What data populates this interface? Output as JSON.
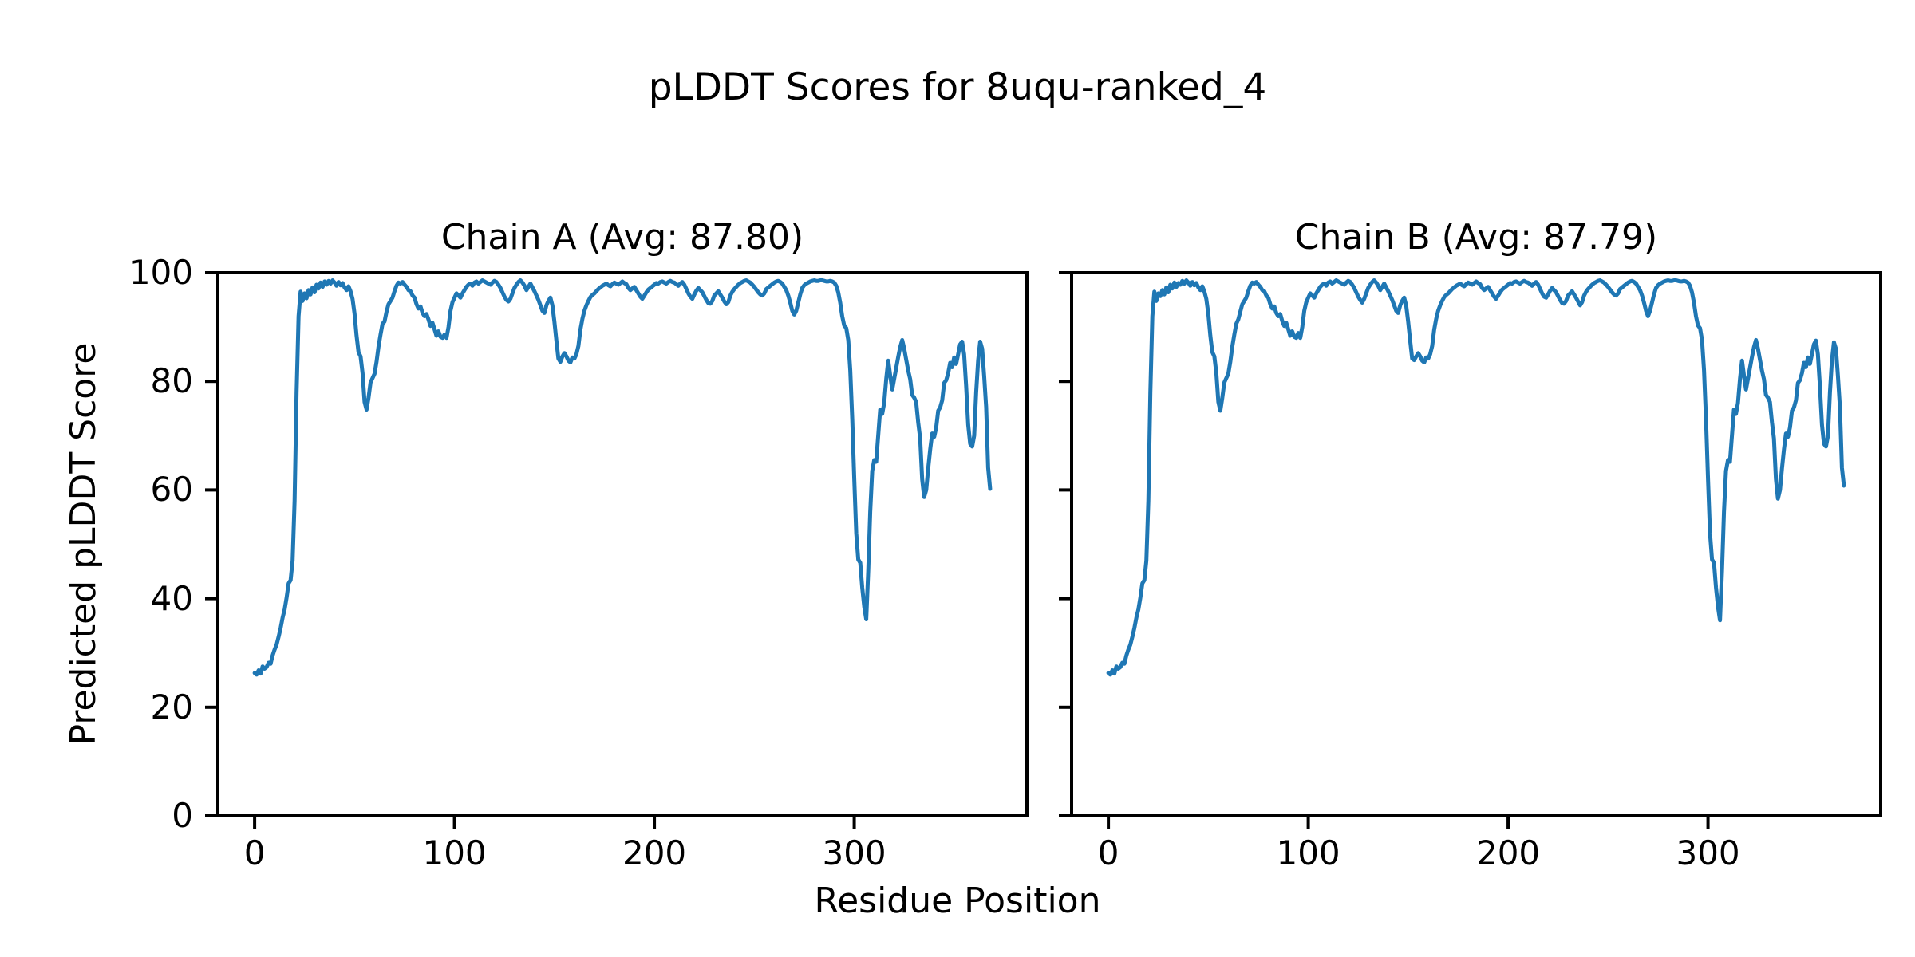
{
  "figure": {
    "title": "pLDDT Scores for 8uqu-ranked_4",
    "background_color": "#ffffff",
    "text_color": "#000000"
  },
  "chart_data": {
    "type": "line",
    "title": "pLDDT Scores for 8uqu-ranked_4",
    "xlabel": "Residue Position",
    "ylabel": "Predicted pLDDT Score",
    "line_color": "#1f77b4",
    "spine_color": "#000000",
    "grid": false,
    "legend": "none",
    "xlim": [
      -18.4,
      386.4
    ],
    "ylim": [
      0,
      100
    ],
    "xticks": [
      0,
      100,
      200,
      300
    ],
    "yticks": [
      0,
      20,
      40,
      60,
      80,
      100
    ],
    "subplots": [
      {
        "chain": "A",
        "avg": 87.8,
        "title": "Chain A (Avg: 87.80)",
        "x0": 0,
        "dx": 1,
        "y": [
          26.3,
          26.0,
          26.8,
          26.2,
          27.5,
          27.1,
          27.4,
          28.2,
          28.0,
          29.5,
          30.6,
          31.5,
          33.0,
          34.6,
          36.5,
          38.0,
          40.2,
          42.8,
          43.4,
          47.0,
          58.0,
          78.0,
          92.0,
          96.5,
          94.8,
          96.2,
          95.3,
          96.8,
          96.0,
          97.3,
          96.4,
          97.8,
          97.1,
          98.2,
          97.4,
          98.4,
          97.8,
          98.5,
          98.0,
          98.6,
          98.2,
          97.6,
          98.3,
          97.7,
          98.1,
          97.3,
          96.8,
          97.5,
          96.6,
          95.2,
          92.5,
          88.5,
          85.4,
          84.6,
          81.5,
          76.2,
          74.8,
          77.0,
          79.8,
          80.6,
          81.4,
          83.6,
          86.4,
          88.6,
          90.6,
          91.0,
          92.8,
          94.2,
          94.8,
          95.4,
          96.6,
          97.6,
          98.2,
          98.0,
          98.3,
          97.8,
          97.4,
          96.8,
          96.6,
          95.8,
          95.4,
          94.2,
          93.4,
          93.8,
          92.6,
          92.0,
          92.4,
          91.4,
          90.2,
          90.8,
          89.6,
          88.4,
          89.2,
          88.2,
          88.0,
          88.6,
          88.0,
          90.0,
          93.0,
          94.6,
          95.4,
          96.2,
          95.8,
          95.4,
          96.2,
          96.8,
          97.4,
          97.8,
          98.0,
          97.6,
          98.2,
          98.4,
          98.0,
          98.3,
          98.6,
          98.4,
          98.2,
          98.0,
          97.8,
          98.2,
          98.5,
          98.3,
          97.8,
          97.2,
          96.4,
          95.6,
          95.0,
          94.7,
          95.2,
          96.2,
          97.2,
          97.8,
          98.3,
          98.6,
          98.2,
          97.6,
          96.8,
          97.4,
          98.0,
          97.3,
          96.6,
          95.8,
          95.0,
          94.0,
          93.0,
          92.6,
          94.0,
          94.8,
          95.4,
          94.0,
          91.0,
          87.5,
          84.2,
          83.6,
          84.6,
          85.2,
          84.6,
          83.8,
          83.5,
          84.4,
          84.2,
          85.0,
          86.5,
          89.5,
          91.5,
          93.0,
          94.0,
          94.8,
          95.5,
          95.9,
          96.2,
          96.6,
          97.0,
          97.3,
          97.6,
          97.8,
          98.0,
          97.7,
          97.5,
          97.9,
          98.2,
          98.0,
          97.8,
          98.1,
          98.4,
          98.1,
          97.9,
          97.2,
          96.8,
          97.1,
          97.4,
          96.8,
          96.2,
          95.6,
          95.2,
          95.8,
          96.4,
          96.9,
          97.2,
          97.5,
          97.8,
          98.1,
          98.0,
          98.3,
          98.4,
          98.2,
          98.0,
          98.3,
          98.5,
          98.3,
          98.2,
          97.9,
          97.6,
          98.0,
          98.3,
          97.8,
          97.0,
          96.2,
          95.6,
          95.2,
          96.0,
          96.7,
          97.2,
          96.8,
          96.4,
          95.7,
          95.0,
          94.4,
          94.3,
          94.8,
          95.8,
          96.2,
          96.6,
          96.0,
          95.4,
          94.7,
          94.2,
          94.6,
          95.8,
          96.5,
          97.0,
          97.4,
          97.8,
          98.1,
          98.3,
          98.5,
          98.6,
          98.4,
          98.2,
          97.8,
          97.4,
          96.9,
          96.4,
          96.0,
          95.8,
          96.2,
          97.0,
          97.3,
          97.6,
          97.9,
          98.2,
          98.4,
          98.5,
          98.3,
          98.0,
          97.4,
          96.8,
          95.8,
          94.5,
          93.0,
          92.3,
          93.0,
          94.5,
          96.0,
          97.2,
          97.7,
          98.0,
          98.2,
          98.4,
          98.5,
          98.6,
          98.5,
          98.5,
          98.6,
          98.6,
          98.5,
          98.4,
          98.4,
          98.5,
          98.4,
          98.2,
          97.6,
          96.4,
          94.5,
          92.0,
          90.3,
          89.8,
          87.6,
          82.0,
          73.0,
          62.0,
          52.0,
          47.2,
          46.6,
          42.0,
          38.5,
          36.2,
          45.0,
          56.0,
          63.5,
          65.5,
          65.2,
          70.0,
          74.8,
          74.0,
          76.0,
          80.5,
          83.8,
          81.0,
          78.5,
          80.5,
          82.5,
          84.5,
          86.3,
          87.6,
          86.0,
          84.0,
          82.0,
          80.4,
          77.5,
          77.0,
          76.2,
          72.5,
          69.5,
          62.0,
          58.7,
          60.0,
          64.0,
          67.5,
          70.4,
          69.8,
          71.5,
          74.6,
          75.2,
          76.5,
          79.7,
          80.2,
          81.5,
          83.4,
          82.6,
          84.4,
          83.2,
          85.0,
          86.8,
          87.3,
          85.0,
          79.2,
          72.0,
          68.5,
          68.0,
          70.0,
          78.0,
          83.9,
          87.3,
          86.0,
          81.0,
          75.3,
          64.1,
          60.2
        ]
      },
      {
        "chain": "B",
        "avg": 87.79,
        "title": "Chain B (Avg: 87.79)",
        "x0": 0,
        "dx": 1,
        "y": [
          26.3,
          26.0,
          26.8,
          26.2,
          27.5,
          27.1,
          27.4,
          28.2,
          28.0,
          29.5,
          30.6,
          31.5,
          33.0,
          34.6,
          36.5,
          38.0,
          40.2,
          42.8,
          43.4,
          47.0,
          58.0,
          78.0,
          92.0,
          96.5,
          94.8,
          96.2,
          95.7,
          96.8,
          96.0,
          97.3,
          96.4,
          97.8,
          97.1,
          98.2,
          97.4,
          98.1,
          97.8,
          98.5,
          98.0,
          98.6,
          98.2,
          97.6,
          98.3,
          97.7,
          98.1,
          97.3,
          96.8,
          97.5,
          96.6,
          95.2,
          92.5,
          88.5,
          85.4,
          84.6,
          81.5,
          76.2,
          74.6,
          77.0,
          79.8,
          80.6,
          81.4,
          83.6,
          86.4,
          88.6,
          90.6,
          91.4,
          92.8,
          94.2,
          94.8,
          95.4,
          96.6,
          97.6,
          98.2,
          98.0,
          98.3,
          97.8,
          97.4,
          96.8,
          96.6,
          95.8,
          95.4,
          94.2,
          93.4,
          93.8,
          92.6,
          92.0,
          92.4,
          91.1,
          90.2,
          90.8,
          89.6,
          88.4,
          89.2,
          88.2,
          88.0,
          88.9,
          88.0,
          90.0,
          93.0,
          94.6,
          95.4,
          96.2,
          95.8,
          95.4,
          96.2,
          96.8,
          97.4,
          97.8,
          98.0,
          97.6,
          98.2,
          98.4,
          98.0,
          98.3,
          98.6,
          98.4,
          98.2,
          98.0,
          97.8,
          98.2,
          98.5,
          98.3,
          97.8,
          97.2,
          96.4,
          95.6,
          95.0,
          94.5,
          95.2,
          96.2,
          97.2,
          97.8,
          98.3,
          98.6,
          98.2,
          97.6,
          96.8,
          97.4,
          98.0,
          97.3,
          96.6,
          95.8,
          95.0,
          94.0,
          93.0,
          92.6,
          94.0,
          94.8,
          95.4,
          94.0,
          91.0,
          87.5,
          84.2,
          83.9,
          84.6,
          85.2,
          84.6,
          83.8,
          83.5,
          84.4,
          84.2,
          85.0,
          86.5,
          89.5,
          91.5,
          93.0,
          94.0,
          94.8,
          95.5,
          95.9,
          96.2,
          96.6,
          97.0,
          97.3,
          97.6,
          97.8,
          98.0,
          97.7,
          97.5,
          97.9,
          98.2,
          98.0,
          97.8,
          98.1,
          98.4,
          98.1,
          97.9,
          97.2,
          96.8,
          97.1,
          97.4,
          96.8,
          96.2,
          95.6,
          95.2,
          95.8,
          96.4,
          96.9,
          97.2,
          97.5,
          97.8,
          98.1,
          98.0,
          98.3,
          98.4,
          98.2,
          98.0,
          98.3,
          98.5,
          98.3,
          98.2,
          97.9,
          97.6,
          98.0,
          98.3,
          97.8,
          97.0,
          96.2,
          95.6,
          95.4,
          96.0,
          96.7,
          97.2,
          96.8,
          96.4,
          95.7,
          95.0,
          94.4,
          94.3,
          94.8,
          95.8,
          96.2,
          96.6,
          96.0,
          95.4,
          94.7,
          94.0,
          94.6,
          95.8,
          96.5,
          97.0,
          97.4,
          97.8,
          98.1,
          98.3,
          98.5,
          98.6,
          98.4,
          98.2,
          97.8,
          97.4,
          96.9,
          96.4,
          96.0,
          95.8,
          96.2,
          97.0,
          97.3,
          97.6,
          97.9,
          98.2,
          98.4,
          98.5,
          98.3,
          98.0,
          97.4,
          96.8,
          95.8,
          94.5,
          93.0,
          92.0,
          93.0,
          94.5,
          96.0,
          97.2,
          97.7,
          98.0,
          98.2,
          98.4,
          98.5,
          98.6,
          98.5,
          98.5,
          98.6,
          98.6,
          98.5,
          98.4,
          98.4,
          98.5,
          98.4,
          98.2,
          97.6,
          96.4,
          94.5,
          92.0,
          90.3,
          89.8,
          87.6,
          82.0,
          73.0,
          62.0,
          52.0,
          47.2,
          46.6,
          42.0,
          38.5,
          36.0,
          45.0,
          56.0,
          63.5,
          65.5,
          65.2,
          70.0,
          74.8,
          74.0,
          76.0,
          80.5,
          83.8,
          81.0,
          78.5,
          80.5,
          82.5,
          84.5,
          86.3,
          87.6,
          86.0,
          84.0,
          82.0,
          80.4,
          77.5,
          77.0,
          76.2,
          72.5,
          69.5,
          62.0,
          58.4,
          60.0,
          64.0,
          67.5,
          70.4,
          69.8,
          71.5,
          74.6,
          75.2,
          76.5,
          79.7,
          80.2,
          81.5,
          83.4,
          82.6,
          84.4,
          83.2,
          85.0,
          86.8,
          87.5,
          85.0,
          79.2,
          72.0,
          68.5,
          68.0,
          70.0,
          78.0,
          83.9,
          87.2,
          86.0,
          81.0,
          75.3,
          64.1,
          60.8
        ]
      }
    ]
  }
}
